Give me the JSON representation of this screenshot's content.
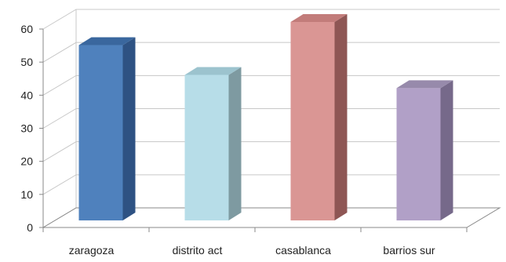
{
  "chart_data": {
    "type": "bar",
    "style": "3d-column",
    "categories": [
      "zaragoza",
      "distrito act",
      "casablanca",
      "barrios sur"
    ],
    "values": [
      53,
      44,
      60,
      40
    ],
    "ylim": [
      0,
      60
    ],
    "yticks": [
      0,
      10,
      20,
      30,
      40,
      50,
      60
    ],
    "grid": true,
    "legend": "none",
    "title": "",
    "xlabel": "",
    "ylabel": "",
    "colors": {
      "front": [
        "#4F81BD",
        "#B7DDE8",
        "#DA9694",
        "#B1A0C7"
      ],
      "side": [
        "#2E5283",
        "#7E9AA1",
        "#8E5654",
        "#76698A"
      ],
      "top": [
        "#3A679E",
        "#9CC3CE",
        "#C27C7A",
        "#978AAB"
      ],
      "gridline": "#C8C8C8",
      "axis": "#888888"
    }
  }
}
